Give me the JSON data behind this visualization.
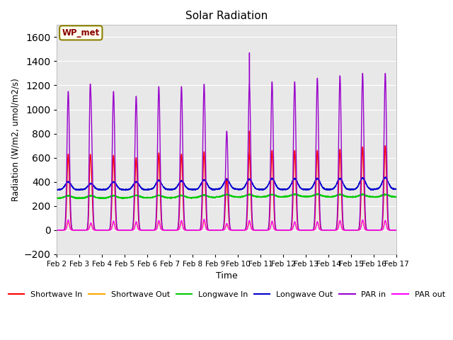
{
  "title": "Solar Radiation",
  "ylabel": "Radiation (W/m2, umol/m2/s)",
  "xlabel": "Time",
  "ylim": [
    -200,
    1700
  ],
  "yticks": [
    -200,
    0,
    200,
    400,
    600,
    800,
    1000,
    1200,
    1400,
    1600
  ],
  "plot_bg_color": "#e8e8e8",
  "annotation": "WP_met",
  "annotation_bg": "#fffff0",
  "annotation_border": "#8b8000",
  "legend_entries": [
    "Shortwave In",
    "Shortwave Out",
    "Longwave In",
    "Longwave Out",
    "PAR in",
    "PAR out"
  ],
  "legend_colors": [
    "#ff0000",
    "#ffa500",
    "#00cc00",
    "#0000cd",
    "#9900cc",
    "#ff00ff"
  ],
  "line_width": 1.0,
  "num_days": 15,
  "day_labels": [
    "Feb 2",
    "Feb 3",
    "Feb 4",
    "Feb 5",
    "Feb 6",
    "Feb 7",
    "Feb 8",
    "Feb 9",
    "Feb 10",
    "Feb 11",
    "Feb 12",
    "Feb 13",
    "Feb 14",
    "Feb 15",
    "Feb 16",
    "Feb 17"
  ],
  "sw_in_peaks": [
    630,
    540,
    620,
    600,
    640,
    630,
    650,
    430,
    650,
    660,
    660,
    660,
    670,
    690,
    700
  ],
  "sw_out_peaks": [
    65,
    50,
    65,
    60,
    65,
    65,
    70,
    45,
    65,
    65,
    65,
    65,
    70,
    75,
    75
  ],
  "par_in_peaks": [
    1150,
    1030,
    1150,
    1110,
    1190,
    1190,
    1210,
    820,
    1220,
    1230,
    1230,
    1260,
    1280,
    1300,
    1300
  ],
  "par_in_spike_day": 7,
  "par_in_spike_val": 1470,
  "par_out_peaks": [
    85,
    60,
    75,
    70,
    80,
    80,
    90,
    55,
    80,
    75,
    70,
    70,
    80,
    85,
    80
  ],
  "lw_in_base": [
    265,
    265,
    265,
    268,
    268,
    268,
    270,
    275,
    275,
    275,
    278,
    278,
    275,
    275,
    275
  ],
  "lw_out_base": [
    335,
    335,
    335,
    335,
    337,
    337,
    337,
    340,
    337,
    337,
    337,
    337,
    337,
    337,
    340
  ],
  "lw_out_peak_add": [
    65,
    50,
    65,
    65,
    75,
    70,
    80,
    80,
    85,
    90,
    90,
    90,
    90,
    95,
    95
  ]
}
